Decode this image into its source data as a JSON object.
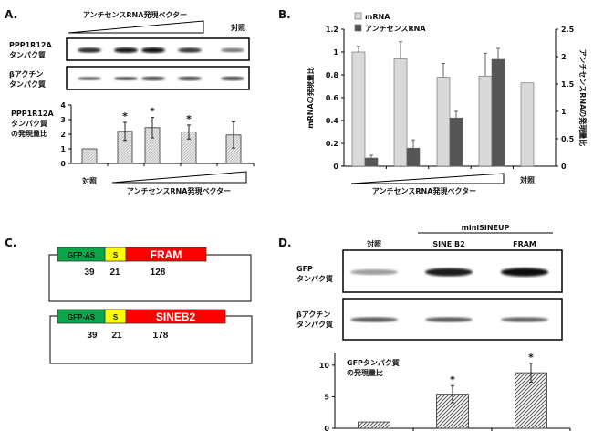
{
  "panels": {
    "A": {
      "label": "A.",
      "vector_label_top": "アンチセンスRNA発現ベクター",
      "control_top": "対照",
      "blot1_label": [
        "PPP1R12A",
        "タンパク質"
      ],
      "blot2_label": [
        "βアクチン",
        "タンパク質"
      ],
      "blot1_band_intensity": [
        0.85,
        0.95,
        1.0,
        0.8,
        0.5
      ],
      "blot2_band_intensity": [
        0.6,
        0.7,
        0.75,
        0.75,
        0.75
      ],
      "control_bottom": "対照",
      "vector_label_bottom": "アンチセンスRNA発現ベクター"
    },
    "B": {
      "label": "B.",
      "control": "対照",
      "vector_label": "アンチセンスRNA発現ベクター"
    },
    "C": {
      "label": "C.",
      "constructs": [
        {
          "segments": [
            "GFP-AS",
            "S",
            "FRAM"
          ],
          "lengths": [
            "39",
            "21",
            "128"
          ]
        },
        {
          "segments": [
            "GFP-AS",
            "S",
            "SINEB2"
          ],
          "lengths": [
            "39",
            "21",
            "178"
          ]
        }
      ],
      "colors": {
        "gfp_as": "#0aa64a",
        "s": "#ffff00",
        "insert": "#ff0000"
      }
    },
    "D": {
      "label": "D.",
      "group_label": "miniSINEUP",
      "lanes": [
        "対照",
        "SINE B2",
        "FRAM"
      ],
      "blot1_label": [
        "GFP",
        "タンパク質"
      ],
      "blot2_label": [
        "βアクチン",
        "タンパク質"
      ],
      "blot1_band_intensity": [
        0.3,
        0.9,
        1.0
      ],
      "blot2_band_intensity": [
        0.6,
        0.6,
        0.55
      ]
    }
  },
  "chart_data": [
    {
      "id": "A",
      "type": "bar",
      "ylabel": [
        "PPP1R12A",
        "タンパク質",
        "の発現量比"
      ],
      "ylim": [
        0,
        4
      ],
      "yticks": [
        "0",
        "1",
        "2",
        "3",
        "4"
      ],
      "values": [
        1.0,
        2.2,
        2.45,
        2.15,
        1.95
      ],
      "errors": [
        0,
        0.62,
        0.7,
        0.48,
        0.9
      ],
      "significant": [
        false,
        true,
        true,
        true,
        false
      ],
      "significance_mark": "*",
      "pattern": "dotted-hatch"
    },
    {
      "id": "B",
      "type": "bar",
      "ylabel": "mRNAの発現量比",
      "y2label": "アンチセンスRNAの発現量比",
      "ylim": [
        0,
        1.2
      ],
      "y2lim": [
        0,
        2.5
      ],
      "yticks": [
        "0",
        "0.2",
        "0.4",
        "0.6",
        "0.8",
        "1",
        "1.2"
      ],
      "y2ticks": [
        "0",
        "0.5",
        "1",
        "1.5",
        "2",
        "2.5"
      ],
      "legend_position": "top-left",
      "series": [
        {
          "name": "mRNA",
          "axis": "left",
          "color": "#d9d9d9",
          "values": [
            1.0,
            0.94,
            0.78,
            0.79,
            0.73
          ],
          "errors": [
            0.05,
            0.15,
            0.12,
            0.2,
            0
          ]
        },
        {
          "name": "アンチセンスRNA",
          "axis": "right",
          "color": "#555555",
          "values": [
            0.15,
            0.33,
            0.88,
            1.95,
            null
          ],
          "errors": [
            0.05,
            0.15,
            0.12,
            0.2,
            null
          ]
        }
      ]
    },
    {
      "id": "D",
      "type": "bar",
      "ylabel": [
        "GFPタンパク質",
        "の発現量比"
      ],
      "ylim": [
        0,
        12
      ],
      "yticks": [
        "0",
        "5",
        "10"
      ],
      "values": [
        1.0,
        5.4,
        8.8
      ],
      "errors": [
        0,
        1.35,
        1.5
      ],
      "significant": [
        false,
        true,
        true
      ],
      "significance_mark": "*",
      "pattern": "diagonal-hatch"
    }
  ]
}
